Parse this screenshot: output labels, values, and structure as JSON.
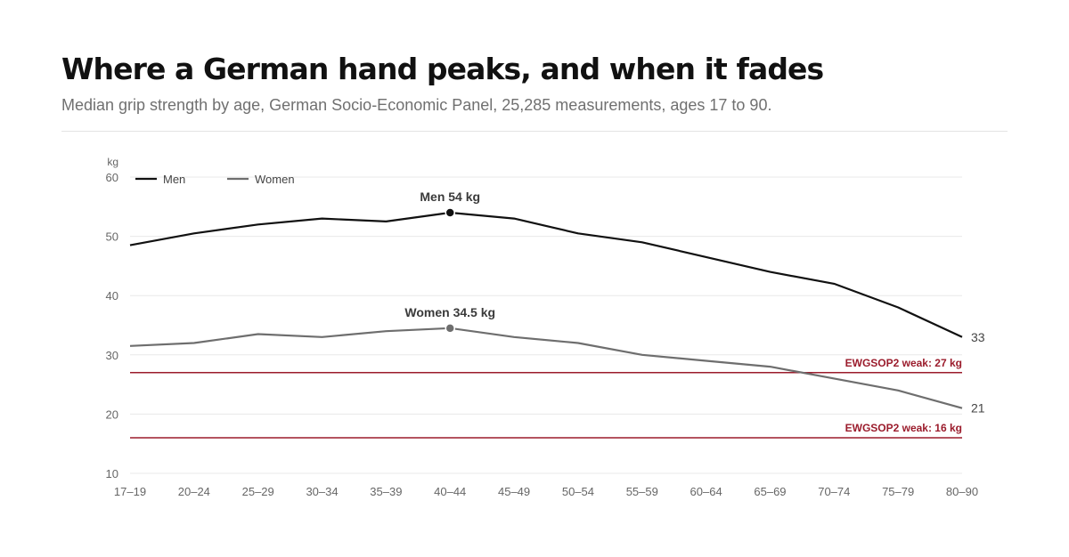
{
  "header": {
    "title": "Where a German hand peaks, and when it fades",
    "subtitle": "Median grip strength by age, German Socio-Economic Panel, 25,285 measurements, ages 17 to 90."
  },
  "chart_data": {
    "type": "line",
    "title": "Where a German hand peaks, and when it fades",
    "subtitle": "Median grip strength by age, German Socio-Economic Panel, 25,285 measurements, ages 17 to 90.",
    "xlabel": "",
    "ylabel": "kg",
    "ylim": [
      10,
      60
    ],
    "yticks": [
      10,
      20,
      30,
      40,
      50,
      60
    ],
    "grid": true,
    "legend_position": "top-left",
    "categories": [
      "17–19",
      "20–24",
      "25–29",
      "30–34",
      "35–39",
      "40–44",
      "45–49",
      "50–54",
      "55–59",
      "60–64",
      "65–69",
      "70–74",
      "75–79",
      "80–90"
    ],
    "series": [
      {
        "name": "Men",
        "color": "#111111",
        "values": [
          48.5,
          50.5,
          52,
          53,
          52.5,
          54,
          53,
          50.5,
          49,
          46.5,
          44,
          42,
          38,
          33
        ],
        "peak_index": 5,
        "peak_label": "Men 54 kg",
        "end_label": "33"
      },
      {
        "name": "Women",
        "color": "#6e6e6e",
        "values": [
          31.5,
          32,
          33.5,
          33,
          34,
          34.5,
          33,
          32,
          30,
          29,
          28,
          26,
          24,
          21
        ],
        "peak_index": 5,
        "peak_label": "Women 34.5 kg",
        "end_label": "21"
      }
    ],
    "reference_lines": [
      {
        "value": 27,
        "label": "EWGSOP2 weak: 27 kg",
        "color": "#9b1c2c"
      },
      {
        "value": 16,
        "label": "EWGSOP2 weak: 16 kg",
        "color": "#9b1c2c"
      }
    ],
    "gridline_color": "#e8e8e8"
  }
}
